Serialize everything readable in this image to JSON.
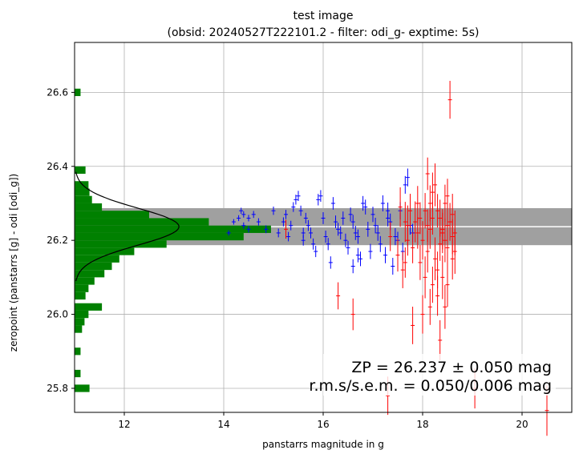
{
  "chart_data": {
    "type": "scatter",
    "title_line1": "test image",
    "title_line2": "(obsid: 20240527T222101.2 - filter: odi_g- exptime: 5s)",
    "xlabel": "panstarrs magnitude in g",
    "ylabel": "zeropoint (panstarrs [g] - odi [odi_g])",
    "xlim": [
      11.0,
      21.0
    ],
    "ylim": [
      25.735,
      26.735
    ],
    "xticks": [
      12,
      14,
      16,
      18,
      20
    ],
    "yticks": [
      25.8,
      26.0,
      26.2,
      26.4,
      26.6
    ],
    "grid": true,
    "zp": 26.237,
    "zp_band": [
      26.187,
      26.287
    ],
    "annotation_line1": "ZP = 26.237 ± 0.050 mag",
    "annotation_line2": "r.m.s/s.e.m. = 0.050/0.006 mag",
    "colors": {
      "used": "#0000ff",
      "rejected": "#ff0000",
      "histogram": "#008000",
      "band": "#a0a0a0",
      "zp_line": "#ffffff",
      "gaussian": "#000000"
    },
    "series": [
      {
        "role": "used",
        "points": [
          [
            14.1,
            26.22
          ],
          [
            14.2,
            26.25
          ],
          [
            14.3,
            26.26
          ],
          [
            14.35,
            26.28
          ],
          [
            14.4,
            26.27
          ],
          [
            14.4,
            26.24
          ],
          [
            14.5,
            26.23
          ],
          [
            14.5,
            26.26
          ],
          [
            14.6,
            26.27
          ],
          [
            14.7,
            26.25
          ],
          [
            14.85,
            26.23
          ],
          [
            15.0,
            26.28
          ],
          [
            15.1,
            26.22
          ],
          [
            15.2,
            26.25
          ],
          [
            15.25,
            26.27
          ],
          [
            15.3,
            26.21
          ],
          [
            15.35,
            26.24
          ],
          [
            15.4,
            26.29
          ],
          [
            15.45,
            26.31
          ],
          [
            15.5,
            26.32
          ],
          [
            15.55,
            26.28
          ],
          [
            15.6,
            26.22
          ],
          [
            15.6,
            26.2
          ],
          [
            15.65,
            26.26
          ],
          [
            15.7,
            26.24
          ],
          [
            15.75,
            26.22
          ],
          [
            15.8,
            26.19
          ],
          [
            15.85,
            26.17
          ],
          [
            15.9,
            26.31
          ],
          [
            15.95,
            26.32
          ],
          [
            16.0,
            26.26
          ],
          [
            16.05,
            26.21
          ],
          [
            16.1,
            26.19
          ],
          [
            16.15,
            26.14
          ],
          [
            16.2,
            26.3
          ],
          [
            16.25,
            26.25
          ],
          [
            16.3,
            26.23
          ],
          [
            16.35,
            26.22
          ],
          [
            16.4,
            26.26
          ],
          [
            16.45,
            26.2
          ],
          [
            16.5,
            26.18
          ],
          [
            16.55,
            26.27
          ],
          [
            16.6,
            26.25
          ],
          [
            16.65,
            26.22
          ],
          [
            16.7,
            26.21
          ],
          [
            16.75,
            26.15
          ],
          [
            16.8,
            26.3
          ],
          [
            16.85,
            26.29
          ],
          [
            16.9,
            26.23
          ],
          [
            16.95,
            26.17
          ],
          [
            17.0,
            26.27
          ],
          [
            17.05,
            26.24
          ],
          [
            17.1,
            26.22
          ],
          [
            17.15,
            26.19
          ],
          [
            17.2,
            26.3
          ],
          [
            17.25,
            26.16
          ],
          [
            17.3,
            26.28
          ],
          [
            17.35,
            26.25
          ],
          [
            17.4,
            26.13
          ],
          [
            17.45,
            26.21
          ],
          [
            17.5,
            26.2
          ],
          [
            17.55,
            26.28
          ],
          [
            17.6,
            26.17
          ],
          [
            17.65,
            26.35
          ],
          [
            17.7,
            26.37
          ],
          [
            17.75,
            26.24
          ],
          [
            17.8,
            26.22
          ],
          [
            16.6,
            26.13
          ],
          [
            16.7,
            26.16
          ],
          [
            17.3,
            26.26
          ]
        ]
      },
      {
        "role": "rejected",
        "points": [
          [
            15.25,
            26.23
          ],
          [
            16.3,
            26.05
          ],
          [
            16.6,
            26.0
          ],
          [
            17.3,
            25.78
          ],
          [
            17.35,
            26.21
          ],
          [
            17.5,
            26.16
          ],
          [
            17.6,
            26.12
          ],
          [
            17.65,
            26.25
          ],
          [
            17.7,
            26.2
          ],
          [
            17.75,
            26.28
          ],
          [
            17.8,
            25.97
          ],
          [
            17.85,
            26.25
          ],
          [
            17.9,
            26.22
          ],
          [
            17.95,
            26.14
          ],
          [
            18.0,
            26.0
          ],
          [
            18.05,
            26.1
          ],
          [
            18.1,
            26.24
          ],
          [
            18.15,
            26.3
          ],
          [
            18.2,
            26.33
          ],
          [
            18.25,
            26.35
          ],
          [
            18.3,
            26.28
          ],
          [
            18.35,
            26.26
          ],
          [
            18.4,
            26.22
          ],
          [
            18.45,
            26.2
          ],
          [
            18.5,
            26.18
          ],
          [
            18.55,
            26.25
          ],
          [
            18.6,
            26.27
          ],
          [
            18.65,
            26.17
          ],
          [
            18.1,
            26.38
          ],
          [
            18.2,
            26.08
          ],
          [
            18.3,
            26.05
          ],
          [
            18.4,
            26.1
          ],
          [
            18.5,
            26.32
          ],
          [
            18.55,
            26.58
          ],
          [
            18.6,
            26.15
          ],
          [
            18.65,
            26.22
          ],
          [
            17.95,
            26.26
          ],
          [
            18.05,
            26.28
          ],
          [
            18.15,
            26.23
          ],
          [
            18.25,
            26.15
          ],
          [
            18.35,
            26.19
          ],
          [
            18.45,
            26.3
          ],
          [
            18.5,
            26.24
          ],
          [
            17.7,
            26.24
          ],
          [
            17.8,
            26.18
          ],
          [
            17.9,
            26.3
          ],
          [
            18.0,
            26.2
          ],
          [
            18.1,
            26.17
          ],
          [
            18.2,
            26.26
          ],
          [
            18.3,
            26.12
          ],
          [
            18.4,
            26.23
          ],
          [
            18.5,
            26.08
          ],
          [
            18.6,
            26.21
          ],
          [
            19.05,
            25.8
          ],
          [
            20.5,
            25.74
          ],
          [
            17.55,
            26.29
          ],
          [
            17.65,
            26.14
          ],
          [
            18.15,
            26.02
          ],
          [
            18.35,
            25.93
          ],
          [
            18.45,
            26.02
          ]
        ]
      }
    ],
    "histogram": [
      [
        26.6,
        0.12
      ],
      [
        26.39,
        0.22
      ],
      [
        26.35,
        0.28
      ],
      [
        26.33,
        0.3
      ],
      [
        26.31,
        0.35
      ],
      [
        26.29,
        0.55
      ],
      [
        26.27,
        1.5
      ],
      [
        26.25,
        2.7
      ],
      [
        26.23,
        3.95
      ],
      [
        26.21,
        3.4
      ],
      [
        26.19,
        1.85
      ],
      [
        26.17,
        1.2
      ],
      [
        26.15,
        0.9
      ],
      [
        26.13,
        0.75
      ],
      [
        26.11,
        0.6
      ],
      [
        26.09,
        0.4
      ],
      [
        26.07,
        0.28
      ],
      [
        26.05,
        0.22
      ],
      [
        26.02,
        0.55
      ],
      [
        26.0,
        0.28
      ],
      [
        25.98,
        0.2
      ],
      [
        25.96,
        0.15
      ],
      [
        25.9,
        0.12
      ],
      [
        25.84,
        0.12
      ],
      [
        25.8,
        0.3
      ]
    ]
  }
}
